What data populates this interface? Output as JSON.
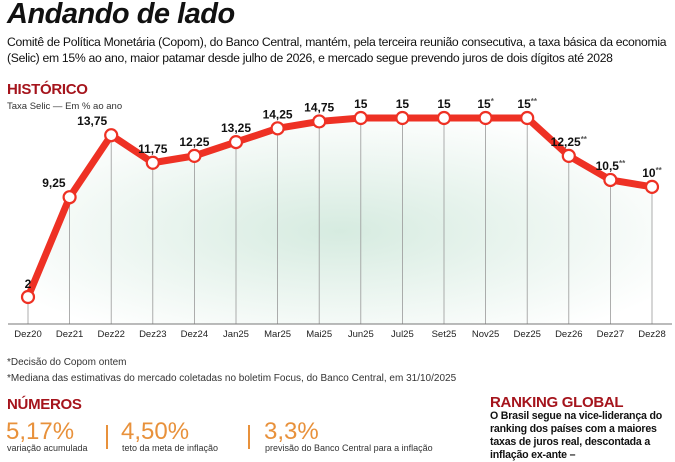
{
  "header": {
    "title": "Andando de lado",
    "subtitle": "Comitê de Política Monetária (Copom), do Banco Central, mantém, pela terceira reunião consecutiva, a taxa básica da economia (Selic) em 15% ao ano, maior patamar desde julho de 2026, e mercado segue prevendo juros de dois dígitos até 2028"
  },
  "historico": {
    "heading": "HISTÓRICO",
    "unit": "Taxa Selic — Em % ao ano"
  },
  "chart_data": {
    "type": "line",
    "title": "",
    "ylabel": "Taxa Selic — Em % ao ano",
    "categories": [
      "Dez20",
      "Dez21",
      "Dez22",
      "Dez23",
      "Dez24",
      "Jan25",
      "Mar25",
      "Mai25",
      "Jun25",
      "Jul25",
      "Set25",
      "Nov25",
      "Dez25",
      "Dez26",
      "Dez27",
      "Dez28"
    ],
    "values": [
      2,
      9.25,
      13.75,
      11.75,
      12.25,
      13.25,
      14.25,
      14.75,
      15,
      15,
      15,
      15,
      15,
      12.25,
      10.5,
      10
    ],
    "labels": [
      "2",
      "9,25",
      "13,75",
      "11,75",
      "12,25",
      "13,25",
      "14,25",
      "14,75",
      "15",
      "15",
      "15",
      "15",
      "15",
      "12,25",
      "10,5",
      "10"
    ],
    "marks": [
      "",
      "",
      "",
      "",
      "",
      "",
      "",
      "",
      "",
      "",
      "",
      "*",
      "**",
      "**",
      "**",
      "**"
    ],
    "ylim": [
      2,
      15
    ],
    "grid": false,
    "line_color": "#ee3124"
  },
  "notes": [
    "*Decisão do Copom ontem",
    "*Mediana das estimativas do mercado coletadas no boletim Focus, do Banco Central, em 31/10/2025"
  ],
  "numeros": {
    "heading": "NÚMEROS",
    "items": [
      {
        "value": "5,17%",
        "desc": "variação acumulada"
      },
      {
        "value": "4,50%",
        "desc": "teto da meta de inflação"
      },
      {
        "value": "3,3%",
        "desc": "previsão do Banco Central para a inflação"
      }
    ]
  },
  "ranking": {
    "heading": "RANKING GLOBAL",
    "text": "O Brasil segue na vice-liderança do ranking dos países com a maiores taxas de juros real, descontada a inflação ex-ante –"
  }
}
